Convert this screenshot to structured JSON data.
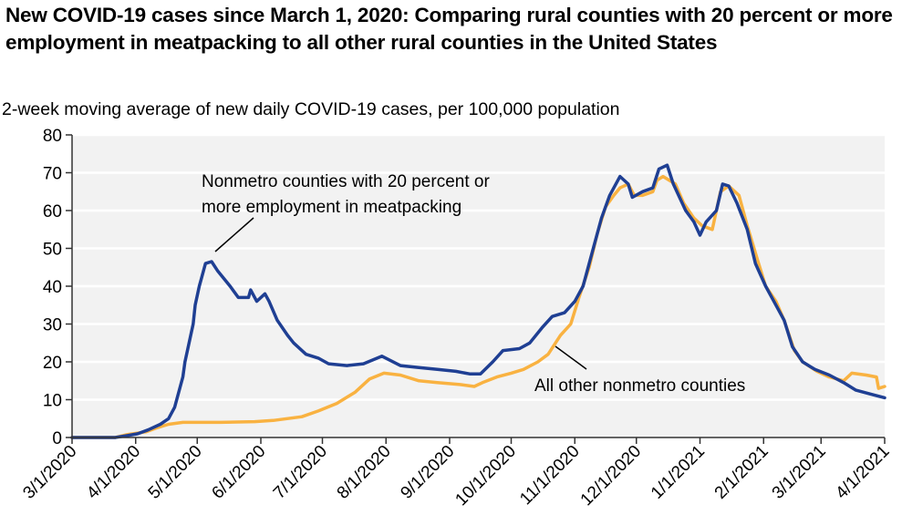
{
  "chart_data": {
    "type": "line",
    "title": "New COVID-19 cases since March 1, 2020: Comparing rural counties with 20 percent or more employment in meatpacking to all other rural counties in the United States",
    "subtitle": "2-week moving average of new daily COVID-19 cases, per 100,000 population",
    "xlabel": "",
    "ylabel": "",
    "x_unit": "days since 3/1/2020",
    "xlim": [
      0,
      396
    ],
    "ylim": [
      0,
      80
    ],
    "yticks": [
      0,
      10,
      20,
      30,
      40,
      50,
      60,
      70,
      80
    ],
    "ytick_labels": [
      "0",
      "10",
      "20",
      "30",
      "40",
      "50",
      "60",
      "70",
      "80"
    ],
    "xticks": [
      0,
      31,
      61,
      92,
      122,
      153,
      184,
      214,
      245,
      275,
      306,
      337,
      365,
      396
    ],
    "xtick_labels": [
      "3/1/2020",
      "4/1/2020",
      "5/1/2020",
      "6/1/2020",
      "7/1/2020",
      "8/1/2020",
      "9/1/2020",
      "10/1/2020",
      "11/1/2020",
      "12/1/2020",
      "1/1/2021",
      "2/1/2021",
      "3/1/2021",
      "4/1/2021"
    ],
    "grid": true,
    "legend": "inline annotations",
    "series": [
      {
        "name": "Nonmetro counties with 20 percent or more employment in meatpacking",
        "annotation_lines": [
          "Nonmetro counties with 20 percent or",
          "more employment in meatpacking"
        ],
        "color": "#1f3f93",
        "x": [
          0,
          21,
          27,
          32,
          37,
          43,
          47,
          50,
          52,
          54,
          55,
          57,
          59,
          60,
          62,
          63,
          65,
          68,
          71,
          77,
          81,
          86,
          87,
          90,
          94,
          96,
          100,
          105,
          108,
          114,
          120,
          125,
          134,
          142,
          151,
          160,
          169,
          178,
          187,
          194,
          199,
          205,
          210,
          218,
          223,
          229,
          234,
          240,
          245,
          249,
          254,
          258,
          262,
          267,
          271,
          273,
          278,
          283,
          286,
          290,
          293,
          299,
          303,
          306,
          309,
          314,
          317,
          320,
          324,
          329,
          333,
          338,
          342,
          347,
          351,
          356,
          362,
          369,
          376,
          382,
          389,
          396
        ],
        "y": [
          0,
          0,
          0.5,
          1,
          2,
          3.5,
          5,
          8,
          12,
          16,
          20,
          25,
          30,
          35,
          40,
          42,
          46,
          46.5,
          44,
          40,
          37,
          37,
          39,
          36,
          38,
          36,
          31,
          27,
          25,
          22,
          21,
          19.5,
          19,
          19.5,
          21.5,
          19,
          18.5,
          18,
          17.5,
          16.8,
          16.8,
          20,
          23,
          23.5,
          25,
          29,
          32,
          33,
          36,
          40,
          50,
          58,
          64,
          69,
          67,
          63.5,
          65,
          66,
          71,
          72,
          67,
          60,
          57,
          53.5,
          57,
          60,
          67,
          66.5,
          62,
          55,
          46,
          40,
          36,
          31,
          24,
          20,
          18,
          16.5,
          14.5,
          12.5,
          11.5,
          10.5
        ]
      },
      {
        "name": "All other nonmetro counties",
        "annotation_lines": [
          "All other nonmetro counties"
        ],
        "color": "#f9b241",
        "x": [
          0,
          21,
          27,
          36,
          41,
          47,
          54,
          72,
          89,
          98,
          112,
          120,
          129,
          138,
          145,
          152,
          160,
          169,
          178,
          189,
          196,
          200,
          207,
          214,
          220,
          227,
          232,
          238,
          243,
          247,
          252,
          256,
          260,
          264,
          267,
          271,
          274,
          278,
          283,
          285,
          288,
          294,
          298,
          303,
          307,
          312,
          316,
          320,
          325,
          329,
          334,
          338,
          343,
          347,
          352,
          356,
          363,
          369,
          376,
          380,
          387,
          392,
          393,
          396
        ],
        "y": [
          0,
          0,
          0.8,
          1.5,
          2.5,
          3.5,
          4,
          4,
          4.2,
          4.5,
          5.5,
          7,
          9,
          12,
          15.5,
          17,
          16.5,
          15,
          14.5,
          14,
          13.5,
          14.5,
          16,
          17,
          18,
          20,
          22,
          27,
          30,
          37,
          45,
          54,
          61,
          64,
          66,
          67,
          64,
          64,
          65,
          68,
          69,
          67,
          62,
          58,
          56,
          55,
          65,
          66.5,
          64,
          56,
          47,
          40,
          36,
          31,
          23,
          20,
          17.5,
          16,
          15,
          17,
          16.5,
          16,
          13,
          13.5
        ]
      }
    ]
  },
  "colors": {
    "plot_background": "#f2f2f2",
    "gridline": "#ffffff",
    "axis": "#333333"
  }
}
